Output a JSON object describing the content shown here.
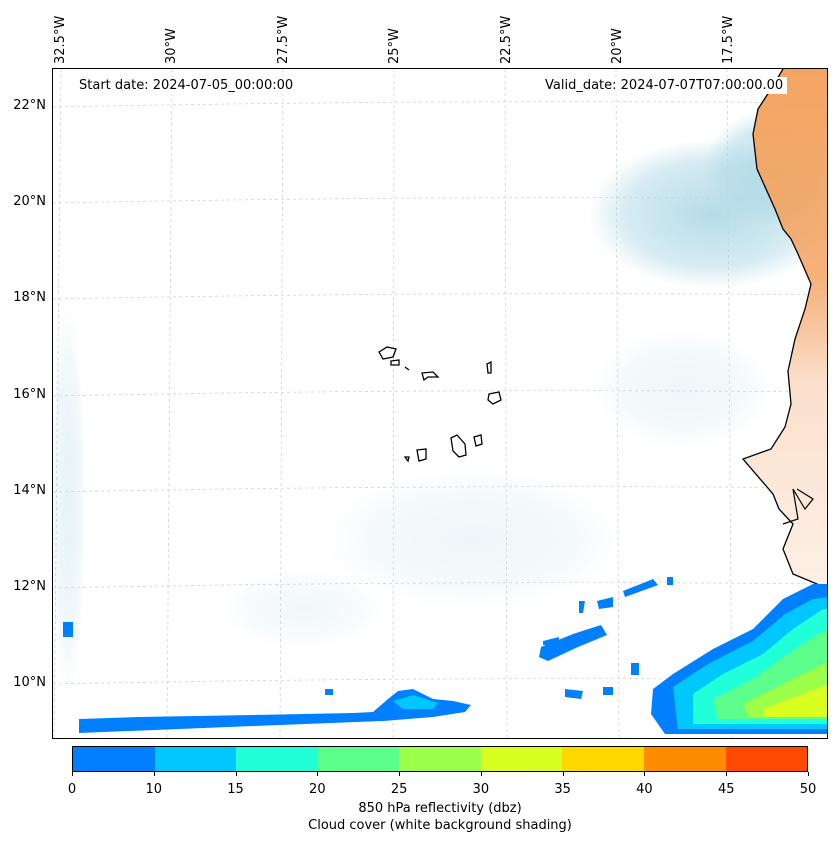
{
  "map": {
    "start_date": "Start date: 2024-07-05_00:00:00",
    "valid_date": "Valid_date: 2024-07-07T07:00:00.00",
    "lon_labels": [
      "32.5°W",
      "30°W",
      "27.5°W",
      "25°W",
      "22.5°W",
      "20°W",
      "17.5°W"
    ],
    "lat_labels": [
      "22°N",
      "20°N",
      "18°N",
      "16°N",
      "14°N",
      "12°N",
      "10°N"
    ],
    "colors": {
      "land": "#f4a462",
      "cloud": "#add8e6",
      "coast": "#000000",
      "grid": "#cccccc"
    }
  },
  "colorbar": {
    "ticks": [
      "0",
      "10",
      "15",
      "20",
      "25",
      "30",
      "35",
      "40",
      "45",
      "50"
    ],
    "colors": [
      "#0080ff",
      "#00c8ff",
      "#20ffd8",
      "#5cff8c",
      "#9cff4a",
      "#d8ff20",
      "#ffd800",
      "#ff8c00",
      "#ff4a00"
    ],
    "label": "850 hPa reflectivity (dbz)",
    "sublabel": "Cloud cover (white background shading)"
  }
}
